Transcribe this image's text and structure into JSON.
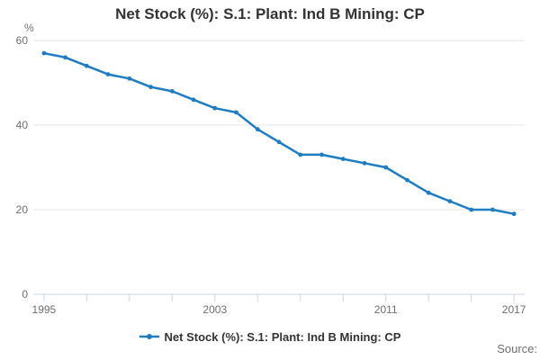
{
  "title": "Net Stock (%): S.1: Plant: Ind B Mining: CP",
  "y_axis": {
    "unit": "%",
    "ticks": [
      0,
      20,
      40,
      60
    ]
  },
  "x_axis": {
    "tick_start": 1995,
    "tick_interval": 2,
    "labeled_ticks": [
      1995,
      2003,
      2011,
      2017
    ],
    "labels": [
      "1995",
      "2003",
      "2011",
      "2017"
    ]
  },
  "legend": {
    "label": "Net Stock (%): S.1: Plant: Ind B Mining: CP"
  },
  "source": {
    "label": "Source:"
  },
  "colors": {
    "line": "#1e7cc2",
    "marker": "#1e7cc2",
    "grid": "#e6e6e6",
    "axis": "#c9d6e6",
    "tick_text": "#6e6e6e",
    "title_text": "#333333",
    "source_text": "#6e6e6e"
  },
  "chart_data": {
    "type": "line",
    "title": "Net Stock (%): S.1: Plant: Ind B Mining: CP",
    "xlabel": "",
    "ylabel": "%",
    "x": [
      1995,
      1996,
      1997,
      1998,
      1999,
      2000,
      2001,
      2002,
      2003,
      2004,
      2005,
      2006,
      2007,
      2008,
      2009,
      2010,
      2011,
      2012,
      2013,
      2014,
      2015,
      2016,
      2017
    ],
    "series": [
      {
        "name": "Net Stock (%): S.1: Plant: Ind B Mining: CP",
        "values": [
          57,
          56,
          54,
          52,
          51,
          49,
          48,
          46,
          44,
          43,
          39,
          36,
          33,
          33,
          32,
          31,
          30,
          27,
          24,
          22,
          20,
          20,
          19
        ]
      }
    ],
    "xlim": [
      1994.5,
      2017.5
    ],
    "ylim": [
      0,
      60
    ],
    "y_ticks": [
      0,
      20,
      40,
      60
    ],
    "x_ticks_every": 2,
    "x_labeled_ticks": [
      1995,
      2003,
      2011,
      2017
    ],
    "grid": "horizontal",
    "legend_position": "bottom",
    "marker": "circle"
  }
}
